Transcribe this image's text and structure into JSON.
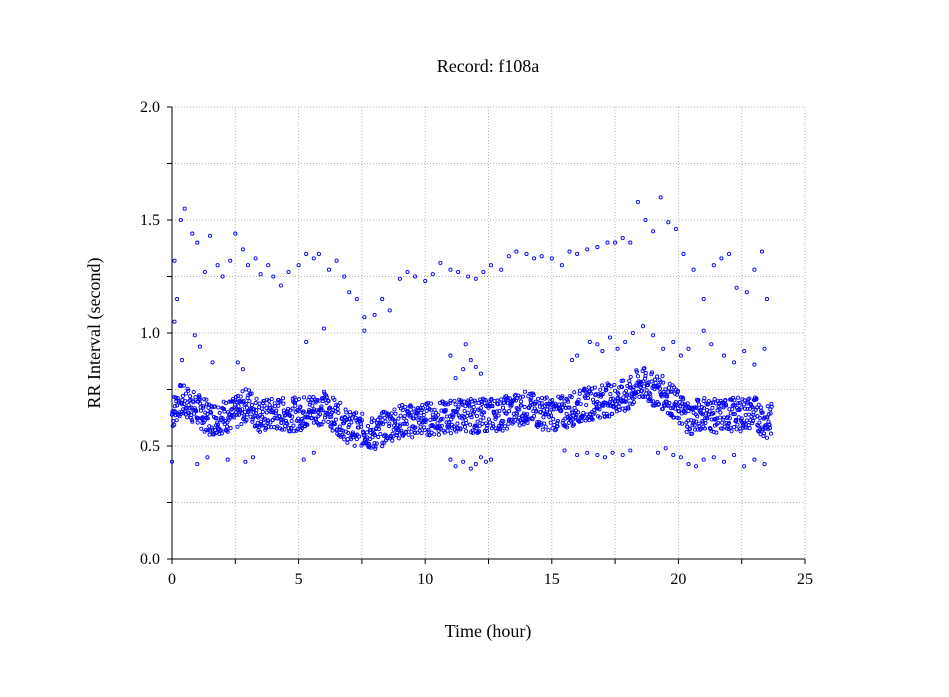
{
  "chart_data": {
    "type": "scatter",
    "title": "Record:  f108a",
    "xlabel": "Time (hour)",
    "ylabel": "RR Interval (second)",
    "xlim": [
      0,
      25
    ],
    "ylim": [
      0.0,
      2.0
    ],
    "x_ticks": [
      "0",
      "5",
      "10",
      "15",
      "20",
      "25"
    ],
    "y_ticks": [
      "0.0",
      "0.5",
      "1.0",
      "1.5",
      "2.0"
    ],
    "grid": true,
    "marker_color": "#0000ff",
    "series": [
      {
        "main_band": [
          [
            0.0,
            0.64
          ],
          [
            0.3,
            0.7
          ],
          [
            0.6,
            0.69
          ],
          [
            1.0,
            0.66
          ],
          [
            1.5,
            0.62
          ],
          [
            2.0,
            0.63
          ],
          [
            2.5,
            0.64
          ],
          [
            3.0,
            0.69
          ],
          [
            3.5,
            0.63
          ],
          [
            4.0,
            0.64
          ],
          [
            4.5,
            0.64
          ],
          [
            5.0,
            0.64
          ],
          [
            5.5,
            0.66
          ],
          [
            6.0,
            0.67
          ],
          [
            6.5,
            0.63
          ],
          [
            7.0,
            0.58
          ],
          [
            7.5,
            0.57
          ],
          [
            8.0,
            0.55
          ],
          [
            8.5,
            0.59
          ],
          [
            9.0,
            0.61
          ],
          [
            9.5,
            0.61
          ],
          [
            10.0,
            0.62
          ],
          [
            10.5,
            0.62
          ],
          [
            11.0,
            0.63
          ],
          [
            11.5,
            0.64
          ],
          [
            12.0,
            0.63
          ],
          [
            12.5,
            0.64
          ],
          [
            13.0,
            0.64
          ],
          [
            13.5,
            0.66
          ],
          [
            14.0,
            0.67
          ],
          [
            14.5,
            0.65
          ],
          [
            15.0,
            0.64
          ],
          [
            15.5,
            0.65
          ],
          [
            16.0,
            0.67
          ],
          [
            16.5,
            0.69
          ],
          [
            17.0,
            0.7
          ],
          [
            17.5,
            0.71
          ],
          [
            18.0,
            0.72
          ],
          [
            18.5,
            0.78
          ],
          [
            19.0,
            0.75
          ],
          [
            19.5,
            0.73
          ],
          [
            20.0,
            0.67
          ],
          [
            20.5,
            0.62
          ],
          [
            21.0,
            0.65
          ],
          [
            21.5,
            0.63
          ],
          [
            22.0,
            0.64
          ],
          [
            22.5,
            0.64
          ],
          [
            23.0,
            0.65
          ],
          [
            23.5,
            0.6
          ],
          [
            23.7,
            0.62
          ]
        ],
        "upper_scatter": [
          [
            0.1,
            1.32
          ],
          [
            0.35,
            1.5
          ],
          [
            0.5,
            1.55
          ],
          [
            0.8,
            1.44
          ],
          [
            1.0,
            1.4
          ],
          [
            1.3,
            1.27
          ],
          [
            1.5,
            1.43
          ],
          [
            1.8,
            1.3
          ],
          [
            2.0,
            1.25
          ],
          [
            2.3,
            1.32
          ],
          [
            2.5,
            1.44
          ],
          [
            2.8,
            1.37
          ],
          [
            3.0,
            1.3
          ],
          [
            3.3,
            1.33
          ],
          [
            3.5,
            1.26
          ],
          [
            3.8,
            1.3
          ],
          [
            4.0,
            1.25
          ],
          [
            4.3,
            1.21
          ],
          [
            4.6,
            1.27
          ],
          [
            5.0,
            1.3
          ],
          [
            5.3,
            1.35
          ],
          [
            5.6,
            1.33
          ],
          [
            5.8,
            1.35
          ],
          [
            6.2,
            1.28
          ],
          [
            6.5,
            1.32
          ],
          [
            6.8,
            1.25
          ],
          [
            7.0,
            1.18
          ],
          [
            7.3,
            1.15
          ],
          [
            7.6,
            1.07
          ],
          [
            8.0,
            1.08
          ],
          [
            8.3,
            1.15
          ],
          [
            8.6,
            1.1
          ],
          [
            9.0,
            1.24
          ],
          [
            9.3,
            1.27
          ],
          [
            9.6,
            1.25
          ],
          [
            10.0,
            1.23
          ],
          [
            10.3,
            1.26
          ],
          [
            10.6,
            1.31
          ],
          [
            11.0,
            1.28
          ],
          [
            11.3,
            1.27
          ],
          [
            11.7,
            1.25
          ],
          [
            12.0,
            1.24
          ],
          [
            12.3,
            1.27
          ],
          [
            12.6,
            1.3
          ],
          [
            13.0,
            1.28
          ],
          [
            13.3,
            1.34
          ],
          [
            13.6,
            1.36
          ],
          [
            14.0,
            1.35
          ],
          [
            14.3,
            1.33
          ],
          [
            14.6,
            1.34
          ],
          [
            15.0,
            1.33
          ],
          [
            15.4,
            1.3
          ],
          [
            15.7,
            1.36
          ],
          [
            16.0,
            1.35
          ],
          [
            16.4,
            1.37
          ],
          [
            16.8,
            1.38
          ],
          [
            17.2,
            1.4
          ],
          [
            17.5,
            1.4
          ],
          [
            17.8,
            1.42
          ],
          [
            18.1,
            1.4
          ],
          [
            18.4,
            1.58
          ],
          [
            18.7,
            1.5
          ],
          [
            19.0,
            1.45
          ],
          [
            19.3,
            1.6
          ],
          [
            19.6,
            1.49
          ],
          [
            19.9,
            1.46
          ],
          [
            20.2,
            1.35
          ],
          [
            20.6,
            1.28
          ],
          [
            21.0,
            1.15
          ],
          [
            21.4,
            1.3
          ],
          [
            21.7,
            1.33
          ],
          [
            22.0,
            1.35
          ],
          [
            22.3,
            1.2
          ],
          [
            22.7,
            1.18
          ],
          [
            23.0,
            1.28
          ],
          [
            23.3,
            1.36
          ],
          [
            23.5,
            1.15
          ]
        ],
        "scatter_points": [
          [
            0.1,
            1.05
          ],
          [
            0.2,
            1.15
          ],
          [
            0.4,
            0.88
          ],
          [
            0.9,
            0.99
          ],
          [
            1.1,
            0.94
          ],
          [
            1.6,
            0.87
          ],
          [
            2.6,
            0.87
          ],
          [
            2.8,
            0.84
          ],
          [
            5.3,
            0.96
          ],
          [
            6.0,
            1.02
          ],
          [
            7.6,
            1.01
          ],
          [
            11.0,
            0.9
          ],
          [
            11.2,
            0.8
          ],
          [
            11.5,
            0.84
          ],
          [
            11.8,
            0.88
          ],
          [
            12.0,
            0.85
          ],
          [
            12.2,
            0.82
          ],
          [
            11.6,
            0.95
          ],
          [
            15.8,
            0.88
          ],
          [
            16.0,
            0.9
          ],
          [
            16.5,
            0.96
          ],
          [
            16.8,
            0.95
          ],
          [
            17.0,
            0.92
          ],
          [
            17.3,
            0.98
          ],
          [
            17.6,
            0.93
          ],
          [
            17.9,
            0.96
          ],
          [
            18.2,
            1.0
          ],
          [
            18.6,
            1.03
          ],
          [
            19.0,
            0.99
          ],
          [
            19.4,
            0.93
          ],
          [
            19.8,
            0.96
          ],
          [
            20.1,
            0.9
          ],
          [
            20.4,
            0.93
          ],
          [
            21.0,
            1.01
          ],
          [
            21.3,
            0.95
          ],
          [
            21.8,
            0.9
          ],
          [
            22.2,
            0.87
          ],
          [
            22.6,
            0.92
          ],
          [
            23.0,
            0.86
          ],
          [
            23.4,
            0.93
          ],
          [
            0.0,
            0.43
          ],
          [
            1.0,
            0.42
          ],
          [
            1.4,
            0.45
          ],
          [
            2.2,
            0.44
          ],
          [
            2.9,
            0.43
          ],
          [
            3.2,
            0.45
          ],
          [
            5.2,
            0.44
          ],
          [
            5.6,
            0.47
          ],
          [
            11.0,
            0.44
          ],
          [
            11.2,
            0.41
          ],
          [
            11.5,
            0.43
          ],
          [
            11.8,
            0.4
          ],
          [
            12.0,
            0.42
          ],
          [
            12.2,
            0.45
          ],
          [
            12.4,
            0.43
          ],
          [
            12.6,
            0.44
          ],
          [
            15.5,
            0.48
          ],
          [
            16.0,
            0.46
          ],
          [
            16.4,
            0.47
          ],
          [
            16.8,
            0.46
          ],
          [
            17.1,
            0.45
          ],
          [
            17.4,
            0.47
          ],
          [
            17.8,
            0.46
          ],
          [
            18.1,
            0.48
          ],
          [
            19.2,
            0.47
          ],
          [
            19.5,
            0.49
          ],
          [
            19.8,
            0.46
          ],
          [
            20.1,
            0.45
          ],
          [
            20.4,
            0.42
          ],
          [
            20.7,
            0.41
          ],
          [
            21.0,
            0.44
          ],
          [
            21.4,
            0.45
          ],
          [
            21.8,
            0.43
          ],
          [
            22.2,
            0.46
          ],
          [
            22.6,
            0.41
          ],
          [
            23.0,
            0.44
          ],
          [
            23.4,
            0.42
          ]
        ]
      }
    ]
  }
}
